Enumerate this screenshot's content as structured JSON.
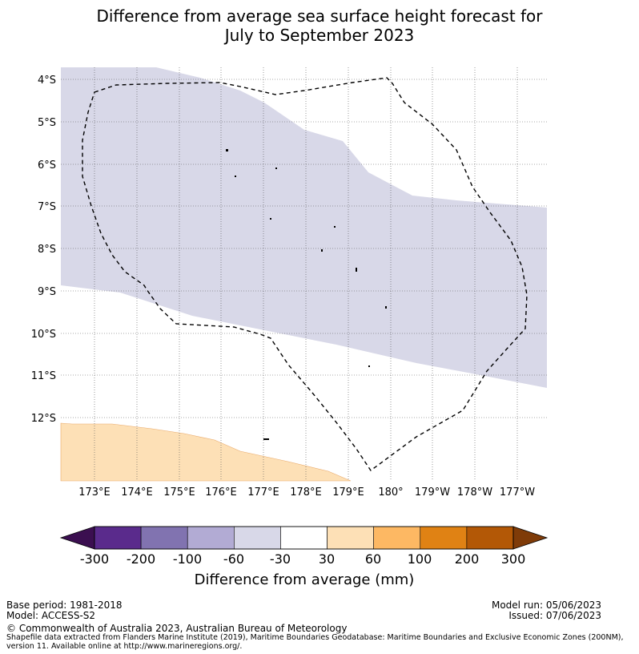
{
  "title": {
    "line1": "Difference from average sea surface height forecast for",
    "line2": "July to September 2023"
  },
  "map": {
    "lat_labels": [
      "4°S",
      "5°S",
      "6°S",
      "7°S",
      "8°S",
      "9°S",
      "10°S",
      "11°S",
      "12°S"
    ],
    "lon_labels": [
      "173°E",
      "174°E",
      "175°E",
      "176°E",
      "177°E",
      "178°E",
      "179°E",
      "180°",
      "179°W",
      "178°W",
      "177°W"
    ],
    "regions": [
      {
        "name": "-60 to -30 mm band",
        "color": "#d8d8e8"
      },
      {
        "name": "30 to 60 mm area",
        "color": "#fde0b6"
      }
    ],
    "eez_boundary": "dashed"
  },
  "colorbar": {
    "tick_labels": [
      "-300",
      "-200",
      "-100",
      "-60",
      "-30",
      "30",
      "60",
      "100",
      "200",
      "300"
    ],
    "colors": [
      "#3b0f50",
      "#5a2b8c",
      "#8173b0",
      "#b2abd4",
      "#d8d8e8",
      "#ffffff",
      "#fde0b6",
      "#fdb863",
      "#e08214",
      "#b35806",
      "#7f3b08"
    ],
    "label": "Difference from average (mm)"
  },
  "footer": {
    "base_period": "Base period: 1981-2018",
    "model": "Model: ACCESS-S2",
    "model_run": "Model run: 05/06/2023",
    "issued": "Issued: 07/06/2023",
    "copyright": "© Commonwealth of Australia 2023, Australian Bureau of Meteorology",
    "shapefile_line1": "Shapefile data extracted from Flanders Marine Institute (2019), Maritime Boundaries Geodatabase: Maritime Boundaries and Exclusive Economic Zones (200NM),",
    "shapefile_line2": "version 11. Available online at http://www.marineregions.org/."
  }
}
